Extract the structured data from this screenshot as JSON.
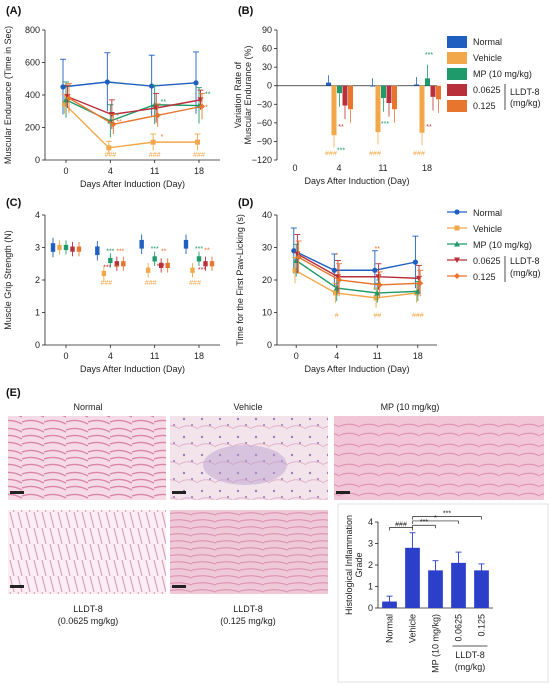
{
  "colors": {
    "Normal": "#1f5fbf",
    "Vehicle": "#f2a84a",
    "MP": "#1f9a6a",
    "LLDT_0.0625": "#b8303a",
    "LLDT_0.125": "#e8752e",
    "bar_hist": "#2b3fc9",
    "tissue_pink": "#e7a9c2",
    "tissue_light": "#f4d8e3",
    "sig_vehicle": "#f2a84a",
    "sig_mp": "#1f9a6a",
    "sig_lldt": "#d0322e"
  },
  "panels": {
    "A": "(A)",
    "B": "(B)",
    "C": "(C)",
    "D": "(D)",
    "E": "(E)"
  },
  "legend": {
    "normal": "Normal",
    "vehicle": "Vehicle",
    "mp": "MP (10 mg/kg)",
    "lldt_low": "0.0625",
    "lldt_high": "0.125",
    "lldt_group": "LLDT-8",
    "lldt_unit": "(mg/kg)"
  },
  "chart_data": [
    {
      "id": "A",
      "type": "line",
      "xlabel": "Days After Induction (Day)",
      "ylabel": "Muscular Endurance (Time in Sec)",
      "categories": [
        "0",
        "4",
        "11",
        "18"
      ],
      "ylim": [
        0,
        800
      ],
      "yticks": [
        "0",
        "200",
        "400",
        "600",
        "800"
      ],
      "series": [
        {
          "name": "Normal",
          "values": [
            450,
            480,
            455,
            475
          ]
        },
        {
          "name": "Vehicle",
          "values": [
            345,
            75,
            110,
            110
          ]
        },
        {
          "name": "MP",
          "values": [
            370,
            240,
            340,
            335
          ]
        },
        {
          "name": "LLDT_0.0625",
          "values": [
            390,
            280,
            320,
            370
          ]
        },
        {
          "name": "LLDT_0.125",
          "values": [
            380,
            220,
            275,
            330
          ]
        }
      ],
      "annotations": [
        "###",
        "###",
        "###"
      ]
    },
    {
      "id": "B",
      "type": "bar",
      "xlabel": "Days After Induction (Day)",
      "ylabel": "Variation Rate of Muscular Endurance (%)",
      "categories": [
        "0",
        "4",
        "11",
        "18"
      ],
      "ylim": [
        -120,
        90
      ],
      "yticks": [
        "90",
        "60",
        "30",
        "0",
        "−30",
        "−60",
        "−90",
        "−120"
      ],
      "series": [
        {
          "name": "Normal",
          "values": [
            0,
            5,
            0,
            2
          ]
        },
        {
          "name": "Vehicle",
          "values": [
            0,
            -80,
            -75,
            -76
          ]
        },
        {
          "name": "MP",
          "values": [
            0,
            -12,
            -20,
            12
          ]
        },
        {
          "name": "LLDT_0.0625",
          "values": [
            0,
            -32,
            -28,
            -18
          ]
        },
        {
          "name": "LLDT_0.125",
          "values": [
            0,
            -38,
            -38,
            -22
          ]
        }
      ],
      "annotations": [
        "###",
        "###",
        "###"
      ]
    },
    {
      "id": "C",
      "type": "box",
      "xlabel": "Days After Induction (Day)",
      "ylabel": "Muscle Grip Strength (N)",
      "categories": [
        "0",
        "4",
        "11",
        "18"
      ],
      "ylim": [
        0,
        4
      ],
      "yticks": [
        "0",
        "1",
        "2",
        "3",
        "4"
      ],
      "series": [
        {
          "name": "Normal",
          "values": [
            3.0,
            2.9,
            3.1,
            3.1
          ]
        },
        {
          "name": "Vehicle",
          "values": [
            3.0,
            2.2,
            2.3,
            2.3
          ]
        },
        {
          "name": "MP",
          "values": [
            3.0,
            2.6,
            2.65,
            2.65
          ]
        },
        {
          "name": "LLDT_0.0625",
          "values": [
            2.95,
            2.5,
            2.45,
            2.5
          ]
        },
        {
          "name": "LLDT_0.125",
          "values": [
            2.95,
            2.5,
            2.45,
            2.5
          ]
        }
      ],
      "annotations": [
        "###",
        "###",
        "###"
      ]
    },
    {
      "id": "D",
      "type": "line",
      "xlabel": "Days After Induction (Day)",
      "ylabel": "Time for the First Paw-Licking (s)",
      "categories": [
        "0",
        "4",
        "11",
        "18"
      ],
      "ylim": [
        0,
        40
      ],
      "yticks": [
        "0",
        "10",
        "20",
        "30",
        "40"
      ],
      "series": [
        {
          "name": "Normal",
          "values": [
            29,
            23,
            23,
            25.5
          ]
        },
        {
          "name": "Vehicle",
          "values": [
            23,
            16,
            14.5,
            16
          ]
        },
        {
          "name": "MP",
          "values": [
            26,
            17.5,
            16,
            16.5
          ]
        },
        {
          "name": "LLDT_0.0625",
          "values": [
            28,
            21,
            21,
            20.5
          ]
        },
        {
          "name": "LLDT_0.125",
          "values": [
            27,
            20,
            18.5,
            19
          ]
        }
      ],
      "annotations": [
        "#",
        "##",
        "###"
      ]
    },
    {
      "id": "E-bar",
      "type": "bar",
      "ylabel": "Histological Inflammation Grade",
      "categories": [
        "Normal",
        "Vehicle",
        "MP (10 mg/kg)",
        "0.0625",
        "0.125"
      ],
      "values": [
        0.3,
        2.8,
        1.75,
        2.1,
        1.75
      ],
      "ylim": [
        0,
        4
      ],
      "yticks": [
        "0",
        "1",
        "2",
        "3",
        "4"
      ],
      "group_label": "LLDT-8",
      "group_unit": "(mg/kg)",
      "annotations": [
        "###",
        "***",
        "*",
        "***"
      ]
    }
  ],
  "histology": {
    "normal": "Normal",
    "vehicle": "Vehicle",
    "mp": "MP (10 mg/kg)",
    "lldt_low_1": "LLDT-8",
    "lldt_low_2": "(0.0625 mg/kg)",
    "lldt_high_1": "LLDT-8",
    "lldt_high_2": "(0.125  mg/kg)"
  },
  "sig_marks": {
    "A": [
      "*",
      "**",
      "*",
      "**",
      "*",
      "**"
    ],
    "B": [
      "***",
      "***",
      "**",
      "***",
      "**"
    ],
    "C": [
      "***",
      "***",
      "**",
      "***",
      "***",
      "***",
      "**",
      "***",
      "***",
      "**"
    ],
    "D": [
      "*",
      "**",
      "*"
    ]
  }
}
